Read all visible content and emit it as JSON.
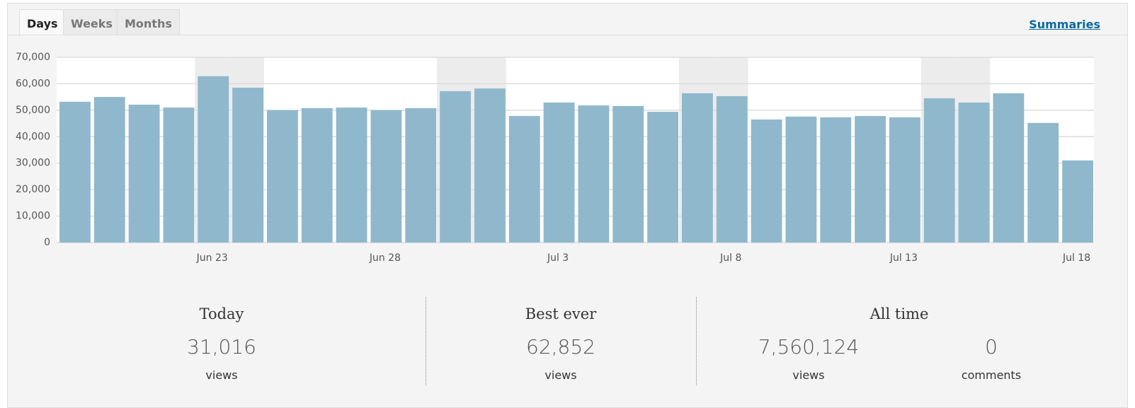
{
  "tabs": [
    "Days",
    "Weeks",
    "Months"
  ],
  "summaries_link": "Summaries",
  "chart_data": {
    "type": "bar",
    "categories": [
      null,
      null,
      null,
      null,
      "Jun 23",
      null,
      null,
      null,
      null,
      "Jun 28",
      null,
      null,
      null,
      null,
      "Jul 3",
      null,
      null,
      null,
      null,
      "Jul 8",
      null,
      null,
      null,
      null,
      "Jul 13",
      null,
      null,
      null,
      null,
      "Jul 18"
    ],
    "values": [
      53200,
      55000,
      52100,
      51000,
      62852,
      58500,
      50000,
      50800,
      51000,
      50000,
      50800,
      57200,
      58200,
      47800,
      52900,
      51800,
      51600,
      49400,
      56400,
      55300,
      46500,
      47600,
      47300,
      47800,
      47300,
      54500,
      52900,
      56400,
      45200,
      31016
    ],
    "color": "#8fb8cc",
    "highlight_indices": [
      4,
      5,
      11,
      12,
      18,
      19,
      25,
      26
    ],
    "highlight_color": "#ececec",
    "ylim": [
      0,
      70000
    ],
    "yticks": [
      0,
      {
        "value": 10000,
        "label": "10,000"
      },
      {
        "value": 20000,
        "label": "20,000"
      },
      {
        "value": 30000,
        "label": "30,000"
      },
      {
        "value": 40000,
        "label": "40,000"
      },
      {
        "value": 50000,
        "label": "50,000"
      },
      {
        "value": 60000,
        "label": "60,000"
      },
      {
        "value": 70000,
        "label": "70,000"
      }
    ],
    "grid": true
  },
  "summary": {
    "today": {
      "title": "Today",
      "value": "31,016",
      "unit": "views"
    },
    "best_ever": {
      "title": "Best ever",
      "value": "62,852",
      "unit": "views"
    },
    "all_time": {
      "title": "All time",
      "views": "7,560,124",
      "views_unit": "views",
      "comments": "0",
      "comments_unit": "comments"
    }
  }
}
